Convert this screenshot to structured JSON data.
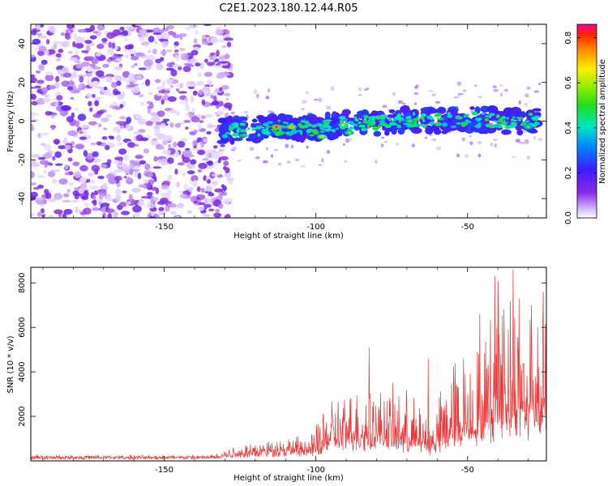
{
  "title": "C2E1.2023.180.12.44.R05",
  "chart_data": [
    {
      "type": "heatmap",
      "name": "spectrogram",
      "xlabel": "Height of straight line (km)",
      "ylabel": "Frequency (Hz)",
      "xlim": [
        -194,
        -24
      ],
      "ylim": [
        -50,
        50
      ],
      "xticks": [
        -150,
        -100,
        -50
      ],
      "yticks": [
        -40,
        -20,
        0,
        20,
        40
      ],
      "noise_region": {
        "x_range": [
          -194,
          -130
        ],
        "y_range": [
          -50,
          50
        ],
        "amplitude": 0.1
      },
      "signal_band": {
        "x_range": [
          -132,
          -26
        ],
        "center_line": [
          [
            -132,
            -5
          ],
          [
            -120,
            -4
          ],
          [
            -110,
            -3
          ],
          [
            -100,
            -4
          ],
          [
            -90,
            -1
          ],
          [
            -80,
            -1
          ],
          [
            -70,
            1
          ],
          [
            -60,
            0
          ],
          [
            -50,
            1
          ],
          [
            -40,
            0
          ],
          [
            -26,
            0
          ]
        ],
        "peaks": [
          {
            "x": -113,
            "y": -3,
            "amplitude": 0.86
          },
          {
            "x": -108,
            "y": -3,
            "amplitude": 0.75
          },
          {
            "x": -98,
            "y": -8,
            "amplitude": 0.7
          },
          {
            "x": -91,
            "y": -2,
            "amplitude": 0.65
          },
          {
            "x": -89,
            "y": -6,
            "amplitude": 0.6
          },
          {
            "x": -69,
            "y": 0,
            "amplitude": 0.55
          },
          {
            "x": -30,
            "y": -3,
            "amplitude": 0.55
          }
        ]
      },
      "colorbar": {
        "label": "Normalized spectral amplitude",
        "range": [
          0,
          0.86
        ],
        "ticks": [
          0.0,
          0.2,
          0.4,
          0.6,
          0.8
        ],
        "tick_labels": [
          "0.0",
          "0.2",
          "0.4",
          "0.6",
          "0.8"
        ]
      }
    },
    {
      "type": "line",
      "name": "snr",
      "xlabel": "Height of straight line (km)",
      "ylabel": "SNR (10 * v/v)",
      "xlim": [
        -194,
        -24
      ],
      "ylim": [
        0,
        8700
      ],
      "xticks": [
        -150,
        -100,
        -50
      ],
      "yticks": [
        2000,
        4000,
        6000,
        8000
      ],
      "color": "#ee3333",
      "envelope": [
        {
          "x": -194,
          "base": 170,
          "amp": 80
        },
        {
          "x": -135,
          "base": 170,
          "amp": 80
        },
        {
          "x": -125,
          "base": 300,
          "amp": 500
        },
        {
          "x": -110,
          "base": 450,
          "amp": 700
        },
        {
          "x": -102,
          "base": 400,
          "amp": 700
        },
        {
          "x": -95,
          "base": 900,
          "amp": 2000
        },
        {
          "x": -85,
          "base": 1000,
          "amp": 2600
        },
        {
          "x": -80,
          "base": 1000,
          "amp": 2400
        },
        {
          "x": -70,
          "base": 800,
          "amp": 2500
        },
        {
          "x": -62,
          "base": 600,
          "amp": 1400
        },
        {
          "x": -55,
          "base": 1200,
          "amp": 3500
        },
        {
          "x": -45,
          "base": 1500,
          "amp": 4500
        },
        {
          "x": -38,
          "base": 2500,
          "amp": 5800
        },
        {
          "x": -30,
          "base": 2000,
          "amp": 5000
        },
        {
          "x": -24,
          "base": 2500,
          "amp": 5500
        }
      ],
      "spikes": [
        {
          "x": -82.5,
          "y": 5100
        },
        {
          "x": -63,
          "y": 4600
        },
        {
          "x": -46,
          "y": 6600
        },
        {
          "x": -41,
          "y": 8300
        },
        {
          "x": -40,
          "y": 8100
        },
        {
          "x": -38,
          "y": 6800
        },
        {
          "x": -35,
          "y": 8600
        },
        {
          "x": -33,
          "y": 7300
        },
        {
          "x": -29,
          "y": 7000
        },
        {
          "x": -25,
          "y": 7600
        }
      ]
    }
  ]
}
